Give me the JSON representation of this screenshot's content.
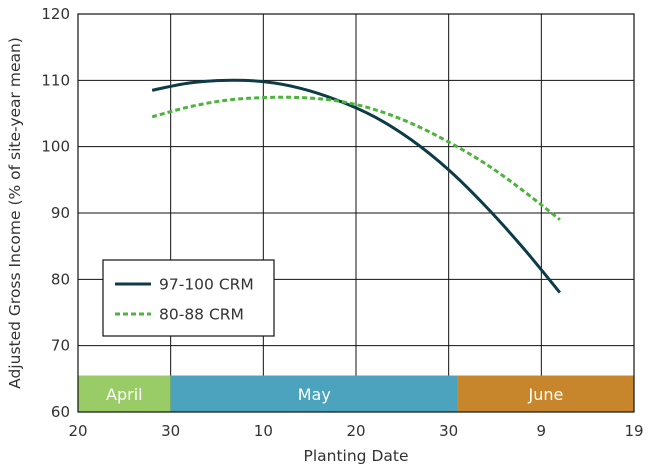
{
  "chart_data": {
    "type": "line",
    "xlabel": "Planting Date",
    "ylabel": "Adjusted Gross Income (% of site-year mean)",
    "ylim": [
      60,
      120
    ],
    "y_ticks": [
      60,
      70,
      80,
      90,
      100,
      110,
      120
    ],
    "xlim": [
      "2024-04-20",
      "2024-06-19"
    ],
    "x_ticks": [
      {
        "date": "2024-04-20",
        "label": "20"
      },
      {
        "date": "2024-04-30",
        "label": "30"
      },
      {
        "date": "2024-05-10",
        "label": "10"
      },
      {
        "date": "2024-05-20",
        "label": "20"
      },
      {
        "date": "2024-05-30",
        "label": "30"
      },
      {
        "date": "2024-06-09",
        "label": "9"
      },
      {
        "date": "2024-06-19",
        "label": "19"
      }
    ],
    "months": [
      {
        "label": "April",
        "start": "2024-04-20",
        "end": "2024-04-30",
        "color": "#99cc66"
      },
      {
        "label": "May",
        "start": "2024-04-30",
        "end": "2024-05-31",
        "color": "#4ba3bd"
      },
      {
        "label": "June",
        "start": "2024-05-31",
        "end": "2024-06-19",
        "color": "#c8862c"
      }
    ],
    "grid": true,
    "legend_position": "bottom-left",
    "series": [
      {
        "name": "97-100 CRM",
        "color": "#0d3b47",
        "style": "solid",
        "points": [
          {
            "x": "2024-04-28",
            "y": 108.5
          },
          {
            "x": "2024-05-02",
            "y": 109.6
          },
          {
            "x": "2024-05-06",
            "y": 110.0
          },
          {
            "x": "2024-05-10",
            "y": 109.8
          },
          {
            "x": "2024-05-14",
            "y": 108.8
          },
          {
            "x": "2024-05-18",
            "y": 107.0
          },
          {
            "x": "2024-05-22",
            "y": 104.5
          },
          {
            "x": "2024-05-26",
            "y": 101.0
          },
          {
            "x": "2024-05-30",
            "y": 96.5
          },
          {
            "x": "2024-06-03",
            "y": 91.0
          },
          {
            "x": "2024-06-07",
            "y": 84.8
          },
          {
            "x": "2024-06-11",
            "y": 78.0
          }
        ]
      },
      {
        "name": "80-88 CRM",
        "color": "#4cb43c",
        "style": "dashed",
        "points": [
          {
            "x": "2024-04-28",
            "y": 104.5
          },
          {
            "x": "2024-05-02",
            "y": 106.0
          },
          {
            "x": "2024-05-06",
            "y": 107.0
          },
          {
            "x": "2024-05-10",
            "y": 107.4
          },
          {
            "x": "2024-05-14",
            "y": 107.4
          },
          {
            "x": "2024-05-18",
            "y": 106.9
          },
          {
            "x": "2024-05-22",
            "y": 105.6
          },
          {
            "x": "2024-05-26",
            "y": 103.5
          },
          {
            "x": "2024-05-30",
            "y": 100.7
          },
          {
            "x": "2024-06-03",
            "y": 97.4
          },
          {
            "x": "2024-06-07",
            "y": 93.4
          },
          {
            "x": "2024-06-11",
            "y": 89.0
          }
        ]
      }
    ]
  }
}
